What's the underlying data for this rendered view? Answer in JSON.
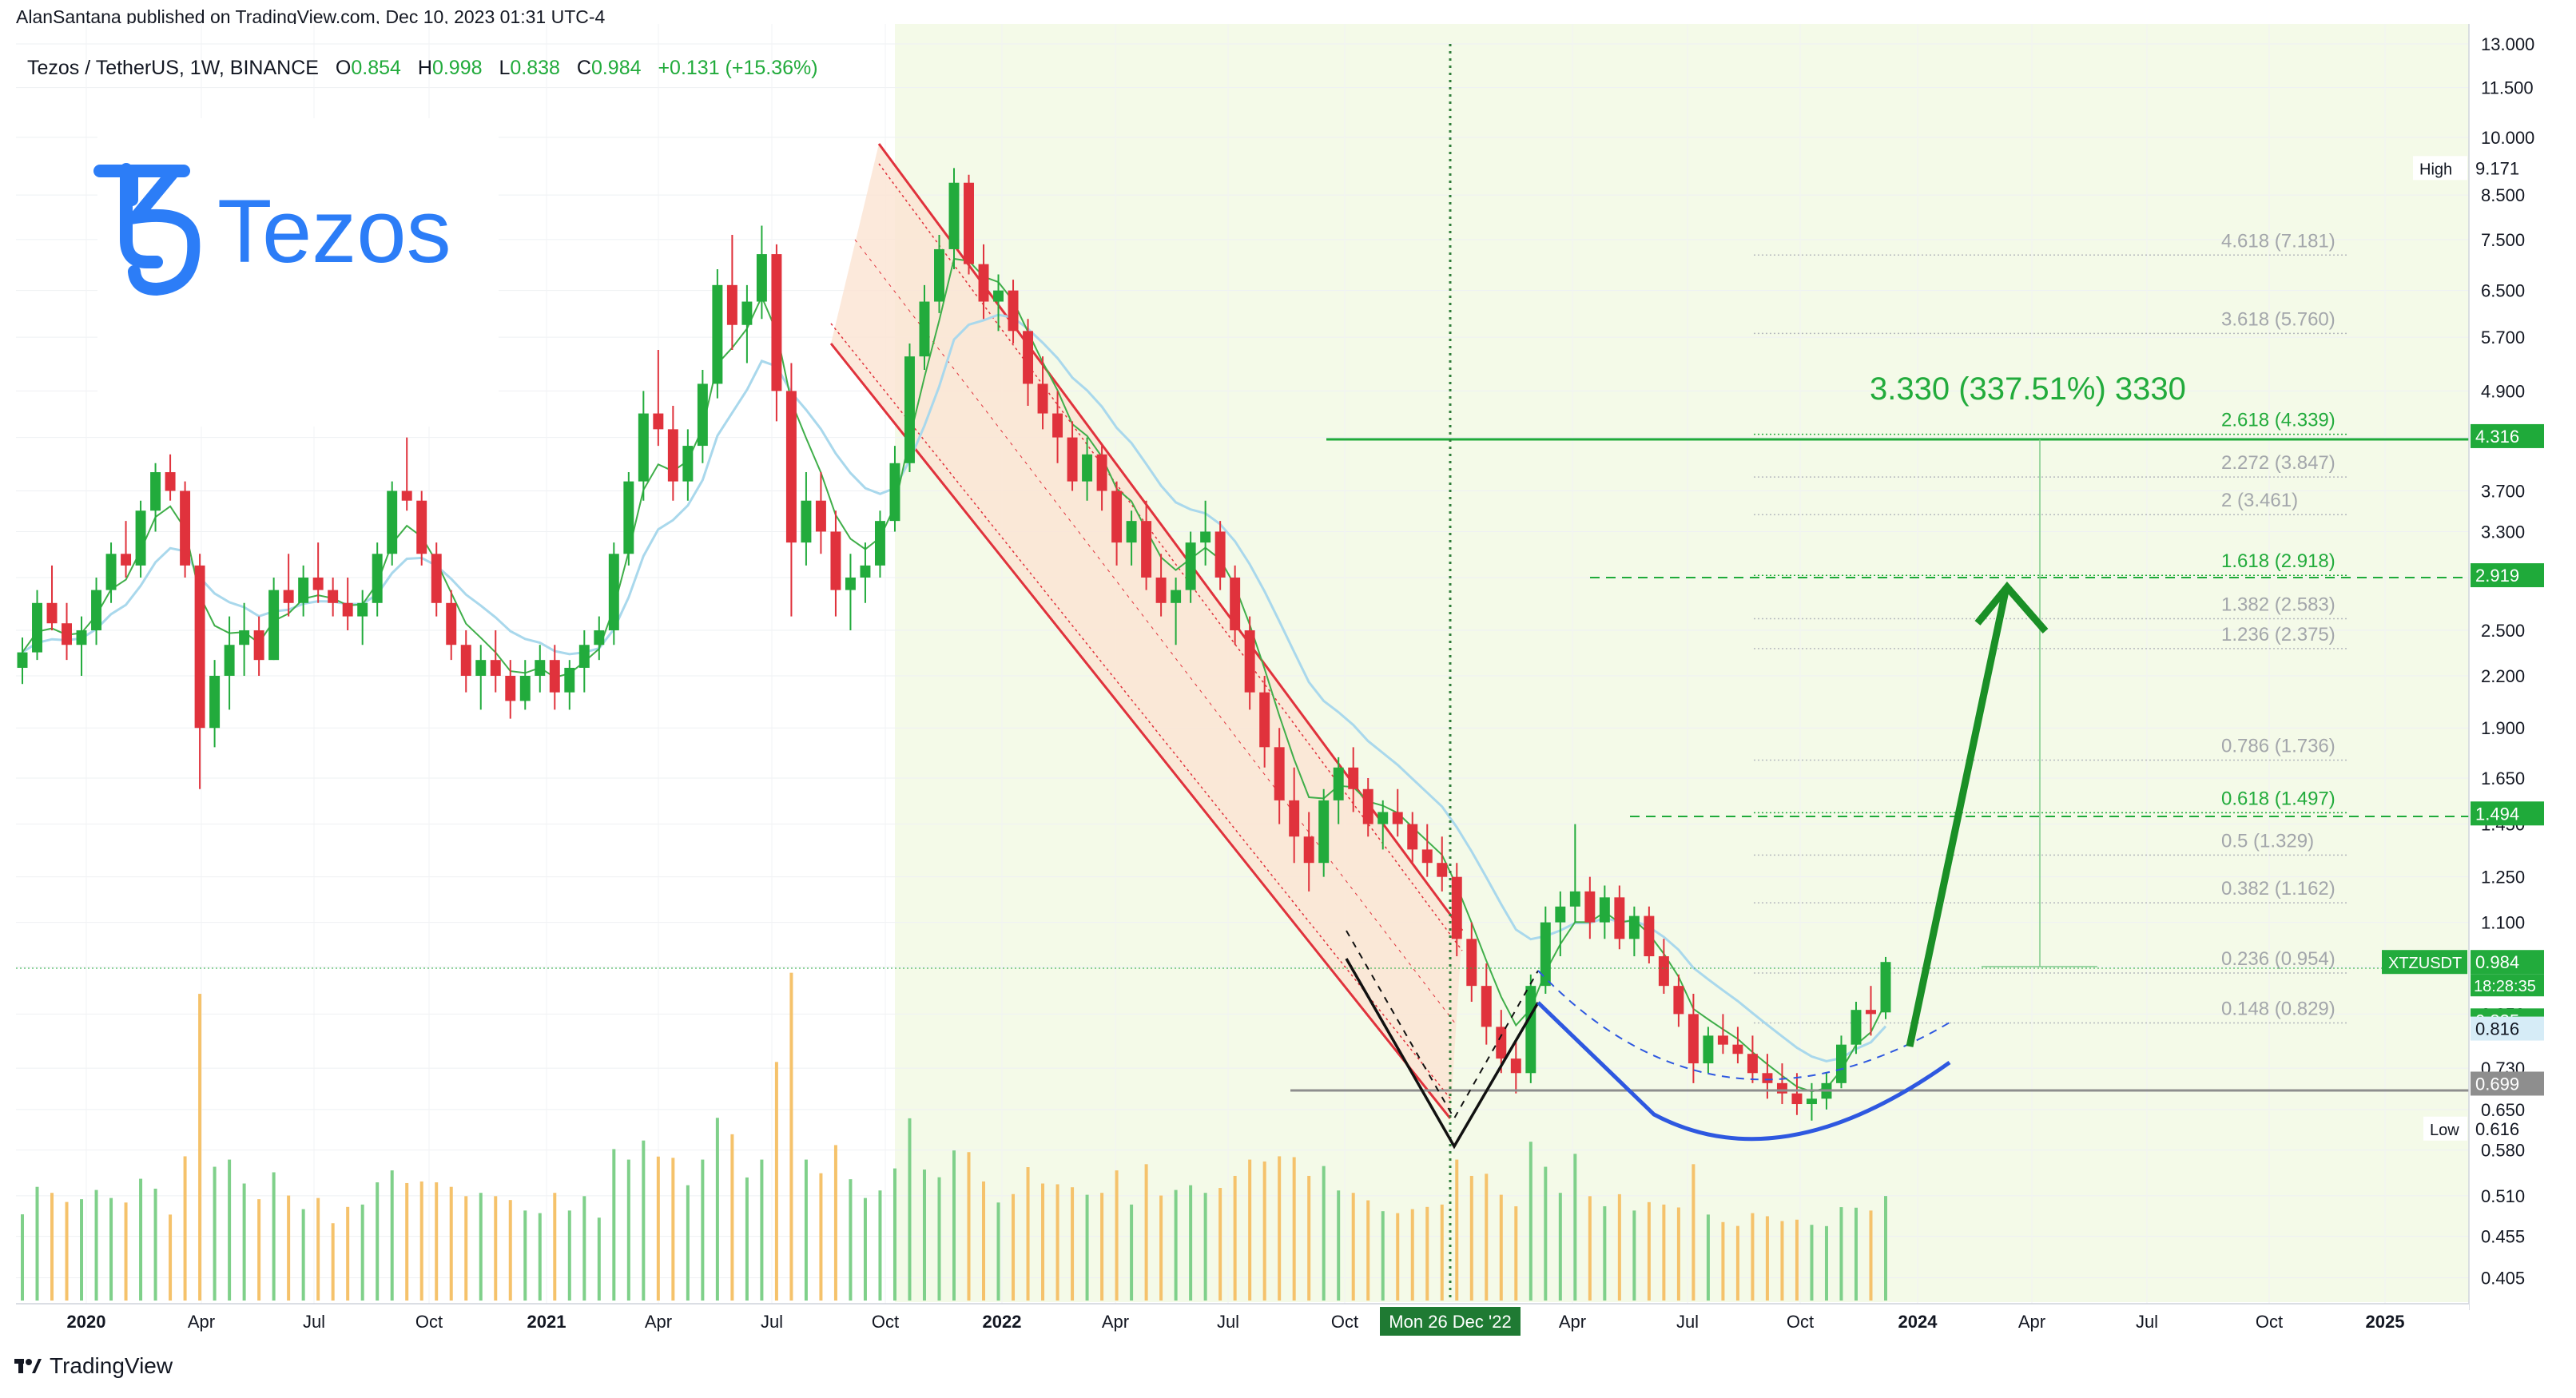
{
  "header": {
    "published_line": "AlanSantana published on TradingView.com, Dec 10, 2023 01:31 UTC-4"
  },
  "symbol_bar": {
    "name": "Tezos / TetherUS, 1W, BINANCE",
    "o_label": "O",
    "o_value": "0.854",
    "h_label": "H",
    "h_value": "0.998",
    "l_label": "L",
    "l_value": "0.838",
    "c_label": "C",
    "c_value": "0.984",
    "change": "+0.131 (+15.36%)"
  },
  "logo": {
    "text": "Tezos"
  },
  "footer": {
    "brand": "TradingView"
  },
  "projection_label": "3.330 (337.51%) 3330",
  "colors": {
    "bull": "#26a69a",
    "bull_candle": "#22ab3c",
    "bear": "#e0323c",
    "channel": "#e0323c",
    "channel_fill": "#fbe3d2",
    "ema": "#a9d8ec",
    "ema2": "#3fae49",
    "target_line": "#1faa3a",
    "arrow": "#1a8f26",
    "curve": "#2e58e0",
    "support": "#8e8e8e",
    "bg_zone": "#f3f9e8"
  },
  "chart_data": {
    "type": "candlestick",
    "y_scale": "log",
    "ylim": [
      0.4,
      13.0
    ],
    "x_axis_labels": [
      "2020",
      "Apr",
      "Jul",
      "Oct",
      "2021",
      "Apr",
      "Jul",
      "Oct",
      "2022",
      "Apr",
      "Jul",
      "Oct",
      "Mon 26 Dec '22",
      "Apr",
      "Jul",
      "Oct",
      "2024",
      "Apr",
      "Jul",
      "Oct",
      "2025"
    ],
    "y_axis_labels": [
      "13.000",
      "11.500",
      "10.000",
      "8.500",
      "7.500",
      "6.500",
      "5.700",
      "4.900",
      "4.300",
      "3.700",
      "3.300",
      "2.900",
      "2.500",
      "2.200",
      "1.900",
      "1.650",
      "1.450",
      "1.250",
      "1.100",
      "0.970",
      "0.850",
      "0.730",
      "0.650",
      "0.580",
      "0.510",
      "0.455",
      "0.405"
    ],
    "price_tags": [
      {
        "label": "High",
        "value": "9.171"
      },
      {
        "label": "",
        "value": "4.316"
      },
      {
        "label": "",
        "value": "2.919"
      },
      {
        "label": "",
        "value": "1.494"
      },
      {
        "label": "XTZUSDT",
        "value": "0.984",
        "sub": "18:28:35"
      },
      {
        "label": "",
        "value": "0.835"
      },
      {
        "label": "",
        "value": "0.816"
      },
      {
        "label": "",
        "value": "0.699"
      },
      {
        "label": "Low",
        "value": "0.616"
      }
    ],
    "fib_levels": [
      {
        "label": "4.618 (7.181)",
        "value": 7.181
      },
      {
        "label": "3.618 (5.760)",
        "value": 5.76
      },
      {
        "label": "2.618 (4.339)",
        "value": 4.339
      },
      {
        "label": "2.272 (3.847)",
        "value": 3.847
      },
      {
        "label": "2 (3.461)",
        "value": 3.461
      },
      {
        "label": "1.618 (2.918)",
        "value": 2.918
      },
      {
        "label": "1.382 (2.583)",
        "value": 2.583
      },
      {
        "label": "1.236 (2.375)",
        "value": 2.375
      },
      {
        "label": "0.786 (1.736)",
        "value": 1.736
      },
      {
        "label": "0.618 (1.497)",
        "value": 1.497
      },
      {
        "label": "0.5 (1.329)",
        "value": 1.329
      },
      {
        "label": "0.382 (1.162)",
        "value": 1.162
      },
      {
        "label": "0.236 (0.954)",
        "value": 0.954
      },
      {
        "label": "0.148 (0.829)",
        "value": 0.829
      }
    ],
    "candles_ohlc_weekly": [
      [
        2.25,
        2.45,
        2.15,
        2.35
      ],
      [
        2.35,
        2.8,
        2.3,
        2.7
      ],
      [
        2.7,
        3.0,
        2.5,
        2.55
      ],
      [
        2.55,
        2.7,
        2.3,
        2.4
      ],
      [
        2.4,
        2.6,
        2.2,
        2.5
      ],
      [
        2.5,
        2.9,
        2.4,
        2.8
      ],
      [
        2.8,
        3.2,
        2.7,
        3.1
      ],
      [
        3.1,
        3.4,
        2.9,
        3.0
      ],
      [
        3.0,
        3.6,
        2.9,
        3.5
      ],
      [
        3.5,
        4.0,
        3.3,
        3.9
      ],
      [
        3.9,
        4.1,
        3.6,
        3.7
      ],
      [
        3.7,
        3.8,
        2.9,
        3.0
      ],
      [
        3.0,
        3.1,
        1.6,
        1.9
      ],
      [
        1.9,
        2.3,
        1.8,
        2.2
      ],
      [
        2.2,
        2.6,
        2.0,
        2.4
      ],
      [
        2.4,
        2.7,
        2.2,
        2.5
      ],
      [
        2.5,
        2.6,
        2.2,
        2.3
      ],
      [
        2.3,
        2.9,
        2.3,
        2.8
      ],
      [
        2.8,
        3.1,
        2.6,
        2.7
      ],
      [
        2.7,
        3.0,
        2.6,
        2.9
      ],
      [
        2.9,
        3.2,
        2.7,
        2.8
      ],
      [
        2.8,
        2.9,
        2.6,
        2.7
      ],
      [
        2.7,
        2.9,
        2.5,
        2.6
      ],
      [
        2.6,
        2.8,
        2.4,
        2.7
      ],
      [
        2.7,
        3.2,
        2.6,
        3.1
      ],
      [
        3.1,
        3.8,
        3.0,
        3.7
      ],
      [
        3.7,
        4.3,
        3.5,
        3.6
      ],
      [
        3.6,
        3.7,
        3.0,
        3.1
      ],
      [
        3.1,
        3.2,
        2.6,
        2.7
      ],
      [
        2.7,
        2.8,
        2.3,
        2.4
      ],
      [
        2.4,
        2.5,
        2.1,
        2.2
      ],
      [
        2.2,
        2.4,
        2.0,
        2.3
      ],
      [
        2.3,
        2.5,
        2.1,
        2.2
      ],
      [
        2.2,
        2.3,
        1.95,
        2.05
      ],
      [
        2.05,
        2.3,
        2.0,
        2.2
      ],
      [
        2.2,
        2.4,
        2.1,
        2.3
      ],
      [
        2.3,
        2.4,
        2.0,
        2.1
      ],
      [
        2.1,
        2.3,
        2.0,
        2.25
      ],
      [
        2.25,
        2.5,
        2.1,
        2.4
      ],
      [
        2.4,
        2.6,
        2.3,
        2.5
      ],
      [
        2.5,
        3.2,
        2.4,
        3.1
      ],
      [
        3.1,
        3.9,
        3.0,
        3.8
      ],
      [
        3.8,
        4.9,
        3.6,
        4.6
      ],
      [
        4.6,
        5.5,
        4.2,
        4.4
      ],
      [
        4.4,
        4.7,
        3.6,
        3.8
      ],
      [
        3.8,
        4.4,
        3.6,
        4.2
      ],
      [
        4.2,
        5.2,
        4.0,
        5.0
      ],
      [
        5.0,
        6.9,
        4.8,
        6.6
      ],
      [
        6.6,
        7.6,
        5.5,
        5.9
      ],
      [
        5.9,
        6.6,
        5.3,
        6.3
      ],
      [
        6.3,
        7.8,
        6.0,
        7.2
      ],
      [
        7.2,
        7.4,
        4.5,
        4.9
      ],
      [
        4.9,
        5.3,
        2.6,
        3.2
      ],
      [
        3.2,
        3.9,
        3.0,
        3.6
      ],
      [
        3.6,
        3.9,
        3.1,
        3.3
      ],
      [
        3.3,
        3.5,
        2.6,
        2.8
      ],
      [
        2.8,
        3.1,
        2.5,
        2.9
      ],
      [
        2.9,
        3.2,
        2.7,
        3.0
      ],
      [
        3.0,
        3.5,
        2.9,
        3.4
      ],
      [
        3.4,
        4.2,
        3.3,
        4.0
      ],
      [
        4.0,
        5.6,
        3.9,
        5.4
      ],
      [
        5.4,
        6.6,
        5.2,
        6.3
      ],
      [
        6.3,
        7.6,
        6.1,
        7.3
      ],
      [
        7.3,
        9.17,
        6.9,
        8.8
      ],
      [
        8.8,
        9.0,
        6.8,
        7.0
      ],
      [
        7.0,
        7.4,
        6.0,
        6.3
      ],
      [
        6.3,
        6.8,
        5.8,
        6.5
      ],
      [
        6.5,
        6.7,
        5.6,
        5.8
      ],
      [
        5.8,
        6.0,
        4.7,
        5.0
      ],
      [
        5.0,
        5.4,
        4.4,
        4.6
      ],
      [
        4.6,
        4.9,
        4.0,
        4.3
      ],
      [
        4.3,
        4.5,
        3.7,
        3.8
      ],
      [
        3.8,
        4.3,
        3.6,
        4.1
      ],
      [
        4.1,
        4.2,
        3.5,
        3.7
      ],
      [
        3.7,
        3.8,
        3.0,
        3.2
      ],
      [
        3.2,
        3.5,
        3.0,
        3.4
      ],
      [
        3.4,
        3.6,
        2.8,
        2.9
      ],
      [
        2.9,
        3.1,
        2.6,
        2.7
      ],
      [
        2.7,
        2.9,
        2.4,
        2.8
      ],
      [
        2.8,
        3.3,
        2.7,
        3.2
      ],
      [
        3.2,
        3.6,
        3.0,
        3.3
      ],
      [
        3.3,
        3.4,
        2.8,
        2.9
      ],
      [
        2.9,
        3.0,
        2.4,
        2.5
      ],
      [
        2.5,
        2.6,
        2.0,
        2.1
      ],
      [
        2.1,
        2.2,
        1.7,
        1.8
      ],
      [
        1.8,
        1.9,
        1.45,
        1.55
      ],
      [
        1.55,
        1.7,
        1.3,
        1.4
      ],
      [
        1.4,
        1.5,
        1.2,
        1.3
      ],
      [
        1.3,
        1.6,
        1.25,
        1.55
      ],
      [
        1.55,
        1.75,
        1.45,
        1.7
      ],
      [
        1.7,
        1.8,
        1.5,
        1.6
      ],
      [
        1.6,
        1.65,
        1.4,
        1.45
      ],
      [
        1.45,
        1.55,
        1.35,
        1.5
      ],
      [
        1.5,
        1.6,
        1.4,
        1.45
      ],
      [
        1.45,
        1.5,
        1.3,
        1.35
      ],
      [
        1.35,
        1.45,
        1.25,
        1.3
      ],
      [
        1.3,
        1.4,
        1.2,
        1.25
      ],
      [
        1.25,
        1.3,
        1.0,
        1.05
      ],
      [
        1.05,
        1.1,
        0.88,
        0.92
      ],
      [
        0.92,
        0.98,
        0.78,
        0.82
      ],
      [
        0.82,
        0.86,
        0.72,
        0.75
      ],
      [
        0.75,
        0.79,
        0.68,
        0.72
      ],
      [
        0.72,
        0.95,
        0.7,
        0.92
      ],
      [
        0.92,
        1.15,
        0.9,
        1.1
      ],
      [
        1.1,
        1.2,
        1.0,
        1.15
      ],
      [
        1.15,
        1.45,
        1.1,
        1.2
      ],
      [
        1.2,
        1.25,
        1.05,
        1.1
      ],
      [
        1.1,
        1.22,
        1.05,
        1.18
      ],
      [
        1.18,
        1.22,
        1.02,
        1.05
      ],
      [
        1.05,
        1.15,
        1.0,
        1.12
      ],
      [
        1.12,
        1.15,
        0.98,
        1.0
      ],
      [
        1.0,
        1.05,
        0.9,
        0.92
      ],
      [
        0.92,
        0.95,
        0.82,
        0.85
      ],
      [
        0.85,
        0.9,
        0.7,
        0.74
      ],
      [
        0.74,
        0.82,
        0.72,
        0.8
      ],
      [
        0.8,
        0.85,
        0.76,
        0.78
      ],
      [
        0.78,
        0.82,
        0.74,
        0.76
      ],
      [
        0.76,
        0.8,
        0.7,
        0.72
      ],
      [
        0.72,
        0.76,
        0.67,
        0.7
      ],
      [
        0.7,
        0.74,
        0.66,
        0.68
      ],
      [
        0.68,
        0.72,
        0.64,
        0.66
      ],
      [
        0.66,
        0.7,
        0.63,
        0.67
      ],
      [
        0.67,
        0.72,
        0.65,
        0.7
      ],
      [
        0.7,
        0.8,
        0.69,
        0.78
      ],
      [
        0.78,
        0.88,
        0.76,
        0.86
      ],
      [
        0.86,
        0.92,
        0.8,
        0.85
      ],
      [
        0.854,
        0.998,
        0.838,
        0.984
      ]
    ]
  }
}
